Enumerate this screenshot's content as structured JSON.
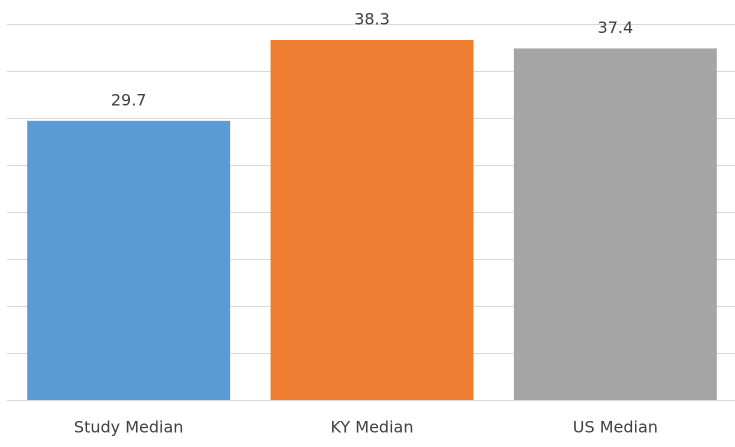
{
  "chart_data": {
    "type": "bar",
    "categories": [
      "Study Median",
      "KY Median",
      "US Median"
    ],
    "values": [
      29.7,
      38.3,
      37.4
    ],
    "colors": [
      "#5b9bd5",
      "#ed7d31",
      "#a5a5a5"
    ],
    "ylim": [
      0,
      40
    ],
    "yticks": [
      0,
      5,
      10,
      15,
      20,
      25,
      30,
      35,
      40
    ],
    "grid": true
  }
}
